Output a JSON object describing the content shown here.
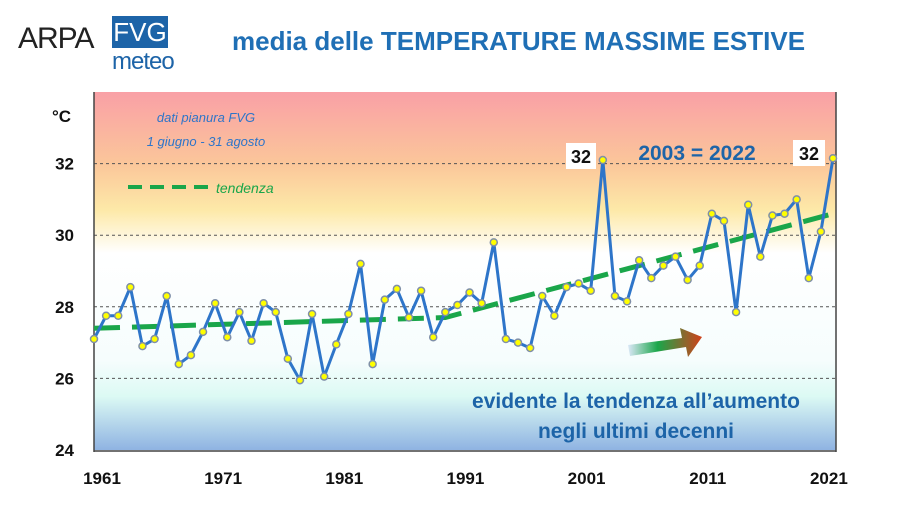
{
  "logo": {
    "text1": "ARPA",
    "text2": "FVG",
    "text3": "meteo"
  },
  "chart_data": {
    "type": "line",
    "title": "media delle TEMPERATURE MASSIME ESTIVE",
    "ylabel": "°C",
    "xlabel": "",
    "ylim": [
      24,
      34
    ],
    "xlim": [
      1961,
      2022
    ],
    "yticks": [
      24,
      26,
      28,
      30,
      32
    ],
    "xticks": [
      1961,
      1971,
      1981,
      1991,
      2001,
      2011,
      2021
    ],
    "grid": true,
    "x": [
      1961,
      1962,
      1963,
      1964,
      1965,
      1966,
      1967,
      1968,
      1969,
      1970,
      1971,
      1972,
      1973,
      1974,
      1975,
      1976,
      1977,
      1978,
      1979,
      1980,
      1981,
      1982,
      1983,
      1984,
      1985,
      1986,
      1987,
      1988,
      1989,
      1990,
      1991,
      1992,
      1993,
      1994,
      1995,
      1996,
      1997,
      1998,
      1999,
      2000,
      2001,
      2002,
      2003,
      2004,
      2005,
      2006,
      2007,
      2008,
      2009,
      2010,
      2011,
      2012,
      2013,
      2014,
      2015,
      2016,
      2017,
      2018,
      2019,
      2020,
      2021,
      2022
    ],
    "series": [
      {
        "values": [
          27.1,
          27.75,
          27.75,
          28.55,
          26.9,
          27.1,
          28.3,
          26.4,
          26.65,
          27.3,
          28.1,
          27.15,
          27.85,
          27.05,
          28.1,
          27.85,
          26.55,
          25.95,
          27.8,
          26.05,
          26.95,
          27.8,
          29.2,
          26.4,
          28.2,
          28.5,
          27.7,
          28.45,
          27.15,
          27.85,
          28.05,
          28.4,
          28.1,
          29.8,
          27.1,
          27.0,
          26.85,
          28.3,
          27.75,
          28.55,
          28.65,
          28.45,
          32.1,
          28.3,
          28.15,
          29.3,
          28.8,
          29.15,
          29.4,
          28.75,
          29.15,
          30.6,
          30.4,
          27.85,
          30.85,
          29.4,
          30.55,
          30.6,
          31.0,
          28.8,
          30.1,
          32.15
        ],
        "color": "#2e75c9"
      },
      {
        "name": "tendenza",
        "x": [
          1961,
          1990,
          2022
        ],
        "values": [
          27.4,
          27.7,
          30.6
        ],
        "color": "#1aa64a",
        "style": "dashed"
      }
    ],
    "annotations": {
      "note1": "dati pianura FVG",
      "note2": "1 giugno - 31 agosto",
      "legend_trend": "tendenza",
      "peak_2003": "32",
      "peak_2022": "32",
      "equal": "2003 = 2022",
      "msg1": "evidente la tendenza all’aumento",
      "msg2": "negli ultimi decenni"
    }
  }
}
